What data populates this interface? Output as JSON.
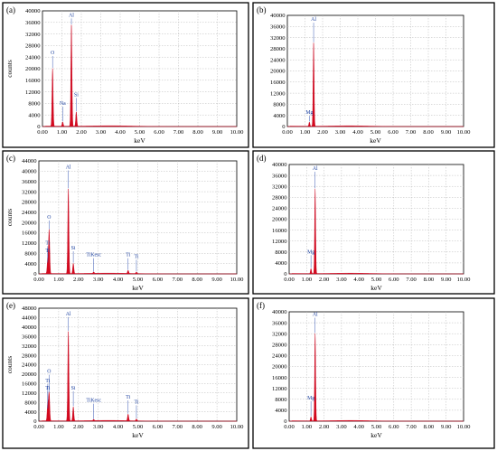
{
  "chart_data": [
    {
      "type": "area",
      "panel_label": "(a)",
      "xlabel": "keV",
      "ylabel": "counts",
      "xlim": [
        0,
        10
      ],
      "ylim": [
        0,
        40000
      ],
      "xticks": [
        "0.00",
        "1.00",
        "2.00",
        "3.00",
        "4.00",
        "5.00",
        "6.00",
        "7.00",
        "8.00",
        "9.00",
        "10.00"
      ],
      "yticks": [
        "0",
        "4000",
        "8000",
        "12000",
        "16000",
        "20000",
        "24000",
        "28000",
        "32000",
        "36000",
        "40000"
      ],
      "grid": true,
      "color": "#d4091e",
      "peaks": [
        {
          "label": "O",
          "energy": 0.52,
          "counts": 20000,
          "label_counts": 25000
        },
        {
          "label": "Na",
          "energy": 1.04,
          "counts": 1500,
          "label_counts": 7500
        },
        {
          "label": "Al",
          "energy": 1.49,
          "counts": 35000,
          "label_counts": 38000
        },
        {
          "label": "Si",
          "energy": 1.74,
          "counts": 5000,
          "label_counts": 10500
        }
      ]
    },
    {
      "type": "area",
      "panel_label": "(b)",
      "xlabel": "keV",
      "ylabel": "",
      "xlim": [
        0,
        10
      ],
      "ylim": [
        0,
        40000
      ],
      "xticks": [
        "0.00",
        "1.00",
        "2.00",
        "3.00",
        "4.00",
        "5.00",
        "6.00",
        "7.00",
        "8.00",
        "9.00",
        "10.00"
      ],
      "yticks": [
        "0",
        "4000",
        "8000",
        "12000",
        "16000",
        "20000",
        "24000",
        "28000",
        "32000",
        "36000",
        "40000"
      ],
      "grid": true,
      "color": "#d4091e",
      "peaks": [
        {
          "label": "Mg",
          "energy": 1.25,
          "counts": 1500,
          "label_counts": 4500
        },
        {
          "label": "Al",
          "energy": 1.49,
          "counts": 30000,
          "label_counts": 38000
        }
      ]
    },
    {
      "type": "area",
      "panel_label": "(c)",
      "xlabel": "keV",
      "ylabel": "counts",
      "xlim": [
        0,
        10
      ],
      "ylim": [
        0,
        44000
      ],
      "xticks": [
        "0.00",
        "1.00",
        "2.00",
        "3.00",
        "4.00",
        "5.00",
        "6.00",
        "7.00",
        "8.00",
        "9.00",
        "10.00"
      ],
      "yticks": [
        "0",
        "4000",
        "8000",
        "12000",
        "16000",
        "20000",
        "24000",
        "28000",
        "32000",
        "36000",
        "40000",
        "44000"
      ],
      "grid": true,
      "color": "#d4091e",
      "peaks": [
        {
          "label": "O",
          "energy": 0.52,
          "counts": 17000,
          "label_counts": 21500
        },
        {
          "label": "Ti",
          "energy": 0.45,
          "counts": 6000,
          "label_counts": 11500
        },
        {
          "label": "Ti",
          "energy": 0.45,
          "counts": 4000,
          "label_counts": 8500
        },
        {
          "label": "Al",
          "energy": 1.49,
          "counts": 33000,
          "label_counts": 41000
        },
        {
          "label": "Si",
          "energy": 1.74,
          "counts": 4000,
          "label_counts": 9500
        },
        {
          "label": "TiKesc",
          "energy": 2.77,
          "counts": 500,
          "label_counts": 6800
        },
        {
          "label": "Ti",
          "energy": 4.51,
          "counts": 1200,
          "label_counts": 6800
        },
        {
          "label": "Ti",
          "energy": 4.93,
          "counts": 600,
          "label_counts": 6200
        }
      ]
    },
    {
      "type": "area",
      "panel_label": "(d)",
      "xlabel": "keV",
      "ylabel": "",
      "xlim": [
        0,
        10
      ],
      "ylim": [
        0,
        40000
      ],
      "xticks": [
        "0.00",
        "1.00",
        "2.00",
        "3.00",
        "4.00",
        "5.00",
        "6.00",
        "7.00",
        "8.00",
        "9.00",
        "10.00"
      ],
      "yticks": [
        "0",
        "4000",
        "8000",
        "12000",
        "16000",
        "20000",
        "24000",
        "28000",
        "32000",
        "36000",
        "40000"
      ],
      "grid": true,
      "color": "#d4091e",
      "peaks": [
        {
          "label": "Mg",
          "energy": 1.25,
          "counts": 1800,
          "label_counts": 7500
        },
        {
          "label": "Al",
          "energy": 1.49,
          "counts": 31000,
          "label_counts": 38000
        }
      ]
    },
    {
      "type": "area",
      "panel_label": "(e)",
      "xlabel": "keV",
      "ylabel": "counts",
      "xlim": [
        0,
        10
      ],
      "ylim": [
        0,
        48000
      ],
      "xticks": [
        "0.00",
        "1.00",
        "2.00",
        "3.00",
        "4.00",
        "5.00",
        "6.00",
        "7.00",
        "8.00",
        "9.00",
        "10.00"
      ],
      "yticks": [
        "0",
        "4000",
        "8000",
        "12000",
        "16000",
        "20000",
        "24000",
        "28000",
        "32000",
        "36000",
        "40000",
        "44000",
        "48000"
      ],
      "grid": true,
      "color": "#d4091e",
      "peaks": [
        {
          "label": "O",
          "energy": 0.52,
          "counts": 12000,
          "label_counts": 20500
        },
        {
          "label": "Ti",
          "energy": 0.45,
          "counts": 8000,
          "label_counts": 16500
        },
        {
          "label": "Ti",
          "energy": 0.45,
          "counts": 5000,
          "label_counts": 13500
        },
        {
          "label": "Al",
          "energy": 1.49,
          "counts": 38000,
          "label_counts": 45000
        },
        {
          "label": "Si",
          "energy": 1.74,
          "counts": 6000,
          "label_counts": 13500
        },
        {
          "label": "TiKesc",
          "energy": 2.77,
          "counts": 500,
          "label_counts": 8200
        },
        {
          "label": "Ti",
          "energy": 4.51,
          "counts": 2800,
          "label_counts": 9600
        },
        {
          "label": "Ti",
          "energy": 4.93,
          "counts": 800,
          "label_counts": 7500
        }
      ]
    },
    {
      "type": "area",
      "panel_label": "(f)",
      "xlabel": "keV",
      "ylabel": "",
      "xlim": [
        0,
        10
      ],
      "ylim": [
        0,
        40000
      ],
      "xticks": [
        "0.00",
        "1.00",
        "2.00",
        "3.00",
        "4.00",
        "5.00",
        "6.00",
        "7.00",
        "8.00",
        "9.00",
        "10.00"
      ],
      "yticks": [
        "0",
        "4000",
        "8000",
        "12000",
        "16000",
        "20000",
        "24000",
        "28000",
        "32000",
        "36000",
        "40000"
      ],
      "grid": true,
      "color": "#d4091e",
      "peaks": [
        {
          "label": "Mg",
          "energy": 1.25,
          "counts": 1500,
          "label_counts": 8000
        },
        {
          "label": "Al",
          "energy": 1.49,
          "counts": 32000,
          "label_counts": 38500
        }
      ]
    }
  ]
}
